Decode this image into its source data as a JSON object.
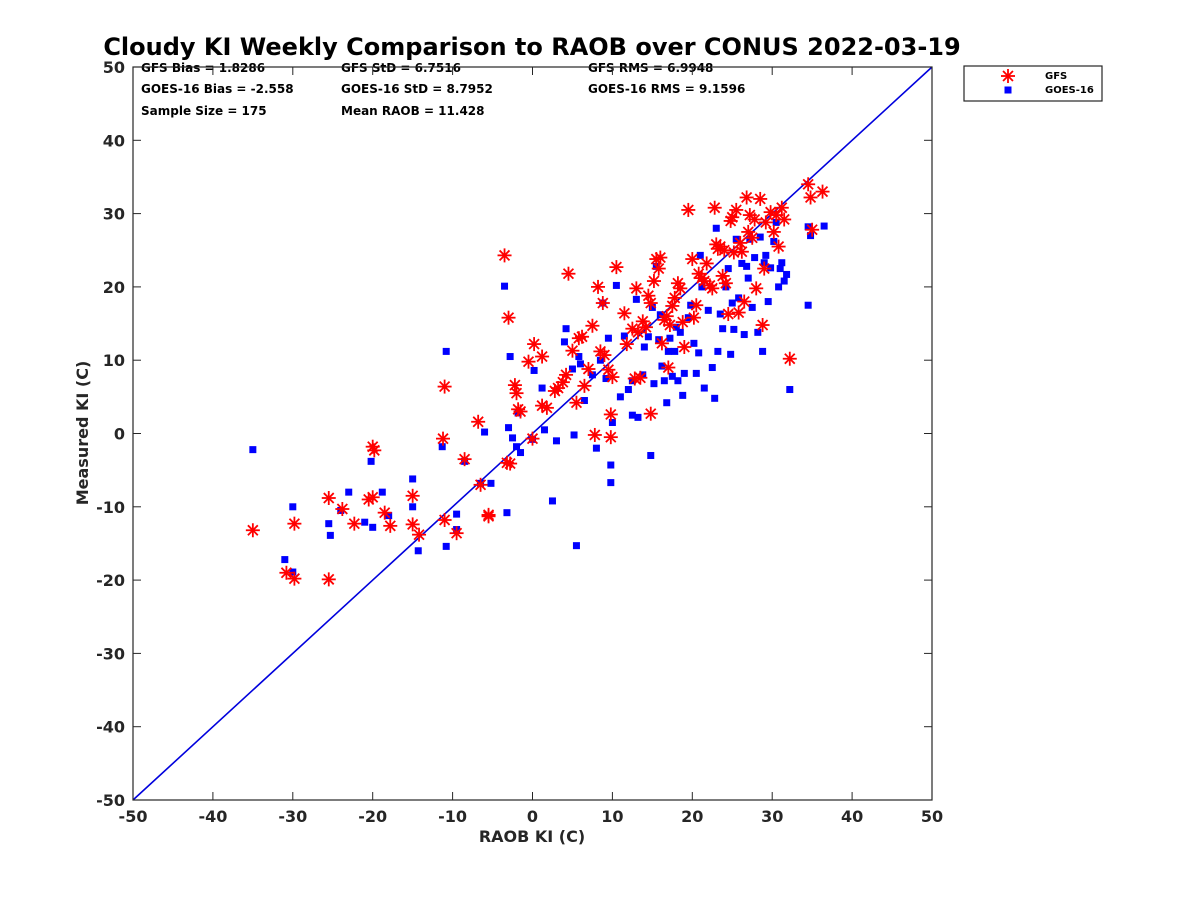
{
  "chart_data": {
    "type": "scatter",
    "title": "Cloudy KI Weekly Comparison to RAOB over CONUS 2022-03-19",
    "xlabel": "RAOB KI (C)",
    "ylabel": "Measured KI (C)",
    "xlim": [
      -50,
      50
    ],
    "ylim": [
      -50,
      50
    ],
    "xticks": [
      "-50",
      "-40",
      "-30",
      "-20",
      "-10",
      "0",
      "10",
      "20",
      "30",
      "40",
      "50"
    ],
    "yticks": [
      "50",
      "40",
      "30",
      "20",
      "10",
      "0",
      "-10",
      "-20",
      "-30",
      "-40",
      "-50"
    ],
    "grid": false,
    "legend_position": "top-right, outside plot",
    "reference_line": {
      "type": "one-to-one",
      "from": [
        -50,
        -50
      ],
      "to": [
        50,
        50
      ],
      "color": "#0000dd"
    },
    "stats": [
      [
        "GFS Bias = 1.8286",
        "GFS StD = 6.7516",
        "GFS RMS = 6.9948"
      ],
      [
        "GOES-16 Bias = -2.558",
        "GOES-16 StD = 8.7952",
        "GOES-16 RMS = 9.1596"
      ],
      [
        "Sample Size = 175",
        "Mean RAOB = 11.428",
        ""
      ]
    ],
    "series": [
      {
        "name": "GFS",
        "marker": "asterisk",
        "color": "#ff0000",
        "points": [
          [
            -35,
            -13.2
          ],
          [
            -30.8,
            -19
          ],
          [
            -29.8,
            -12.3
          ],
          [
            -29.8,
            -19.8
          ],
          [
            -25.5,
            -8.8
          ],
          [
            -25.5,
            -19.9
          ],
          [
            -23.8,
            -10.3
          ],
          [
            -22.3,
            -12.3
          ],
          [
            -20.5,
            -9
          ],
          [
            -20,
            -8.7
          ],
          [
            -20,
            -1.8
          ],
          [
            -19.8,
            -2.3
          ],
          [
            -18.5,
            -10.8
          ],
          [
            -17.8,
            -12.6
          ],
          [
            -15,
            -8.5
          ],
          [
            -15,
            -12.4
          ],
          [
            -14.2,
            -13.8
          ],
          [
            -11.2,
            -0.7
          ],
          [
            -11,
            6.4
          ],
          [
            -11,
            -11.8
          ],
          [
            -9.5,
            -13.6
          ],
          [
            -8.5,
            -3.5
          ],
          [
            -6.8,
            1.6
          ],
          [
            -6.5,
            -7
          ],
          [
            -5.5,
            -11.3
          ],
          [
            -5.5,
            -11.1
          ],
          [
            -3.5,
            24.3
          ],
          [
            -3.2,
            -4
          ],
          [
            -3,
            15.8
          ],
          [
            -2.8,
            -4.1
          ],
          [
            -2.2,
            6.6
          ],
          [
            -2,
            5.5
          ],
          [
            -1.8,
            3.3
          ],
          [
            -1.5,
            3
          ],
          [
            -0.5,
            9.8
          ],
          [
            0,
            -0.7
          ],
          [
            0.2,
            12.2
          ],
          [
            1.2,
            10.5
          ],
          [
            1.2,
            3.8
          ],
          [
            1.8,
            3.5
          ],
          [
            2.8,
            5.8
          ],
          [
            3.2,
            6.2
          ],
          [
            3.8,
            7
          ],
          [
            4.2,
            8
          ],
          [
            4.5,
            21.8
          ],
          [
            5,
            11.3
          ],
          [
            5.5,
            4.2
          ],
          [
            5.8,
            13
          ],
          [
            6.2,
            13.2
          ],
          [
            6.5,
            6.5
          ],
          [
            7,
            8.8
          ],
          [
            7.5,
            14.7
          ],
          [
            7.8,
            -0.2
          ],
          [
            8.2,
            20
          ],
          [
            8.5,
            11.2
          ],
          [
            8.8,
            17.8
          ],
          [
            9,
            10.7
          ],
          [
            9.5,
            8.7
          ],
          [
            9.8,
            -0.5
          ],
          [
            9.8,
            2.6
          ],
          [
            10,
            7.7
          ],
          [
            10.5,
            22.7
          ],
          [
            11.5,
            16.4
          ],
          [
            11.8,
            12.2
          ],
          [
            12.5,
            14.3
          ],
          [
            12.8,
            7.5
          ],
          [
            13,
            19.8
          ],
          [
            13.2,
            13.8
          ],
          [
            13.5,
            7.6
          ],
          [
            13.8,
            15.3
          ],
          [
            14.2,
            14.5
          ],
          [
            14.5,
            18.8
          ],
          [
            14.8,
            17.8
          ],
          [
            14.8,
            2.7
          ],
          [
            15.2,
            20.8
          ],
          [
            15.5,
            23.8
          ],
          [
            15.8,
            22.5
          ],
          [
            16,
            24
          ],
          [
            16.2,
            12.3
          ],
          [
            16.5,
            15.5
          ],
          [
            16.8,
            16
          ],
          [
            17,
            9
          ],
          [
            17.2,
            14.8
          ],
          [
            17.5,
            17.4
          ],
          [
            17.8,
            18.5
          ],
          [
            18.2,
            20.5
          ],
          [
            18.5,
            19.8
          ],
          [
            18.8,
            15.2
          ],
          [
            19,
            11.8
          ],
          [
            19.5,
            30.5
          ],
          [
            20,
            23.8
          ],
          [
            20.2,
            15.8
          ],
          [
            20.5,
            17.5
          ],
          [
            20.8,
            21.8
          ],
          [
            21.2,
            21.2
          ],
          [
            21.5,
            20.8
          ],
          [
            21.8,
            23.2
          ],
          [
            22.2,
            20.2
          ],
          [
            22.5,
            19.8
          ],
          [
            22.8,
            30.8
          ],
          [
            23,
            25.8
          ],
          [
            23.2,
            25.2
          ],
          [
            23.5,
            25.5
          ],
          [
            23.8,
            21.5
          ],
          [
            24,
            25
          ],
          [
            24.2,
            20.5
          ],
          [
            24.5,
            16.3
          ],
          [
            24.8,
            29
          ],
          [
            25,
            29.5
          ],
          [
            25.2,
            24.7
          ],
          [
            25.5,
            30.5
          ],
          [
            25.8,
            16.5
          ],
          [
            26,
            26
          ],
          [
            26.2,
            24.8
          ],
          [
            26.5,
            18
          ],
          [
            26.8,
            32.2
          ],
          [
            27,
            27.5
          ],
          [
            27.2,
            29.8
          ],
          [
            27.5,
            26.7
          ],
          [
            27.8,
            29.2
          ],
          [
            28,
            19.8
          ],
          [
            28.5,
            32
          ],
          [
            28.8,
            14.8
          ],
          [
            29,
            22.5
          ],
          [
            29.2,
            28.8
          ],
          [
            29.8,
            30.2
          ],
          [
            30.2,
            27.5
          ],
          [
            30.5,
            29.8
          ],
          [
            30.8,
            25.5
          ],
          [
            31.2,
            30.8
          ],
          [
            31.5,
            29.2
          ],
          [
            32.2,
            10.2
          ],
          [
            34.5,
            34
          ],
          [
            34.8,
            32.2
          ],
          [
            35,
            27.8
          ],
          [
            36.3,
            33
          ]
        ]
      },
      {
        "name": "GOES-16",
        "marker": "square",
        "color": "#0000ff",
        "points": [
          [
            -35,
            -2.2
          ],
          [
            -31,
            -17.2
          ],
          [
            -30,
            -10
          ],
          [
            -30,
            -18.9
          ],
          [
            -25.5,
            -12.3
          ],
          [
            -25.3,
            -13.9
          ],
          [
            -24,
            -10.5
          ],
          [
            -23,
            -8
          ],
          [
            -21,
            -12.1
          ],
          [
            -20.2,
            -3.8
          ],
          [
            -20,
            -12.8
          ],
          [
            -18.8,
            -8
          ],
          [
            -18,
            -11.2
          ],
          [
            -15,
            -6.2
          ],
          [
            -15,
            -10
          ],
          [
            -14.3,
            -16
          ],
          [
            -11.3,
            -1.8
          ],
          [
            -10.8,
            11.2
          ],
          [
            -10.8,
            -15.4
          ],
          [
            -9.5,
            -13.1
          ],
          [
            -9.5,
            -11
          ],
          [
            -8.5,
            -3.8
          ],
          [
            -6.5,
            -6.8
          ],
          [
            -6,
            0.2
          ],
          [
            -5.2,
            -6.8
          ],
          [
            -3.5,
            20.1
          ],
          [
            -3.2,
            -10.8
          ],
          [
            -3,
            0.8
          ],
          [
            -2.8,
            10.5
          ],
          [
            -2.5,
            -0.6
          ],
          [
            -2,
            -1.8
          ],
          [
            -1.8,
            2.8
          ],
          [
            -1.5,
            -2.6
          ],
          [
            0,
            -0.8
          ],
          [
            0.2,
            8.6
          ],
          [
            1.2,
            6.2
          ],
          [
            1.5,
            0.5
          ],
          [
            2.5,
            -9.2
          ],
          [
            3,
            -1
          ],
          [
            4,
            12.5
          ],
          [
            4.2,
            14.3
          ],
          [
            5,
            8.8
          ],
          [
            5.2,
            -0.2
          ],
          [
            5.5,
            -15.3
          ],
          [
            5.8,
            10.5
          ],
          [
            6,
            9.5
          ],
          [
            6.5,
            4.5
          ],
          [
            7.5,
            8
          ],
          [
            8,
            -2
          ],
          [
            8.5,
            10
          ],
          [
            8.8,
            17.8
          ],
          [
            9.2,
            7.5
          ],
          [
            9.5,
            13
          ],
          [
            9.8,
            -4.3
          ],
          [
            9.8,
            -6.7
          ],
          [
            10,
            1.5
          ],
          [
            10.5,
            20.2
          ],
          [
            11,
            5
          ],
          [
            11.5,
            13.3
          ],
          [
            12,
            6
          ],
          [
            12.5,
            7.2
          ],
          [
            12.5,
            2.5
          ],
          [
            13,
            18.3
          ],
          [
            13.2,
            2.2
          ],
          [
            13.8,
            8
          ],
          [
            14,
            11.8
          ],
          [
            14.5,
            13.2
          ],
          [
            14.8,
            -3
          ],
          [
            15,
            17.2
          ],
          [
            15.2,
            6.8
          ],
          [
            15.5,
            22.8
          ],
          [
            15.8,
            12.8
          ],
          [
            16,
            16.2
          ],
          [
            16.2,
            9.2
          ],
          [
            16.5,
            7.2
          ],
          [
            16.8,
            4.2
          ],
          [
            17,
            11.2
          ],
          [
            17.2,
            13
          ],
          [
            17.5,
            7.8
          ],
          [
            17.8,
            11.2
          ],
          [
            18,
            14.5
          ],
          [
            18.2,
            7.2
          ],
          [
            18.5,
            13.8
          ],
          [
            18.8,
            5.2
          ],
          [
            19,
            8.2
          ],
          [
            19.5,
            15.8
          ],
          [
            19.8,
            17.5
          ],
          [
            20.2,
            12.3
          ],
          [
            20.5,
            8.2
          ],
          [
            20.8,
            11
          ],
          [
            21,
            24.3
          ],
          [
            21.2,
            20
          ],
          [
            21.5,
            6.2
          ],
          [
            22,
            16.8
          ],
          [
            22.5,
            9
          ],
          [
            22.8,
            4.8
          ],
          [
            23,
            28
          ],
          [
            23.2,
            11.2
          ],
          [
            23.5,
            16.3
          ],
          [
            23.8,
            14.3
          ],
          [
            24.2,
            20
          ],
          [
            24.5,
            22.5
          ],
          [
            24.8,
            10.8
          ],
          [
            25,
            17.8
          ],
          [
            25.2,
            14.2
          ],
          [
            25.5,
            26.5
          ],
          [
            25.8,
            18.5
          ],
          [
            26.2,
            23.2
          ],
          [
            26.5,
            13.5
          ],
          [
            26.8,
            22.8
          ],
          [
            27,
            21.2
          ],
          [
            27.2,
            26.5
          ],
          [
            27.5,
            17.2
          ],
          [
            27.8,
            24
          ],
          [
            28.2,
            13.8
          ],
          [
            28.5,
            26.8
          ],
          [
            28.8,
            11.2
          ],
          [
            29,
            23.3
          ],
          [
            29.2,
            24.3
          ],
          [
            29.5,
            18
          ],
          [
            29.8,
            22.6
          ],
          [
            30.2,
            26.2
          ],
          [
            30.5,
            28.8
          ],
          [
            30.8,
            20
          ],
          [
            31,
            22.5
          ],
          [
            31.2,
            23.3
          ],
          [
            31.5,
            20.8
          ],
          [
            31.8,
            21.7
          ],
          [
            32.2,
            6
          ],
          [
            34.5,
            28.2
          ],
          [
            34.5,
            17.5
          ],
          [
            34.8,
            27
          ],
          [
            36.5,
            28.3
          ]
        ]
      }
    ]
  }
}
